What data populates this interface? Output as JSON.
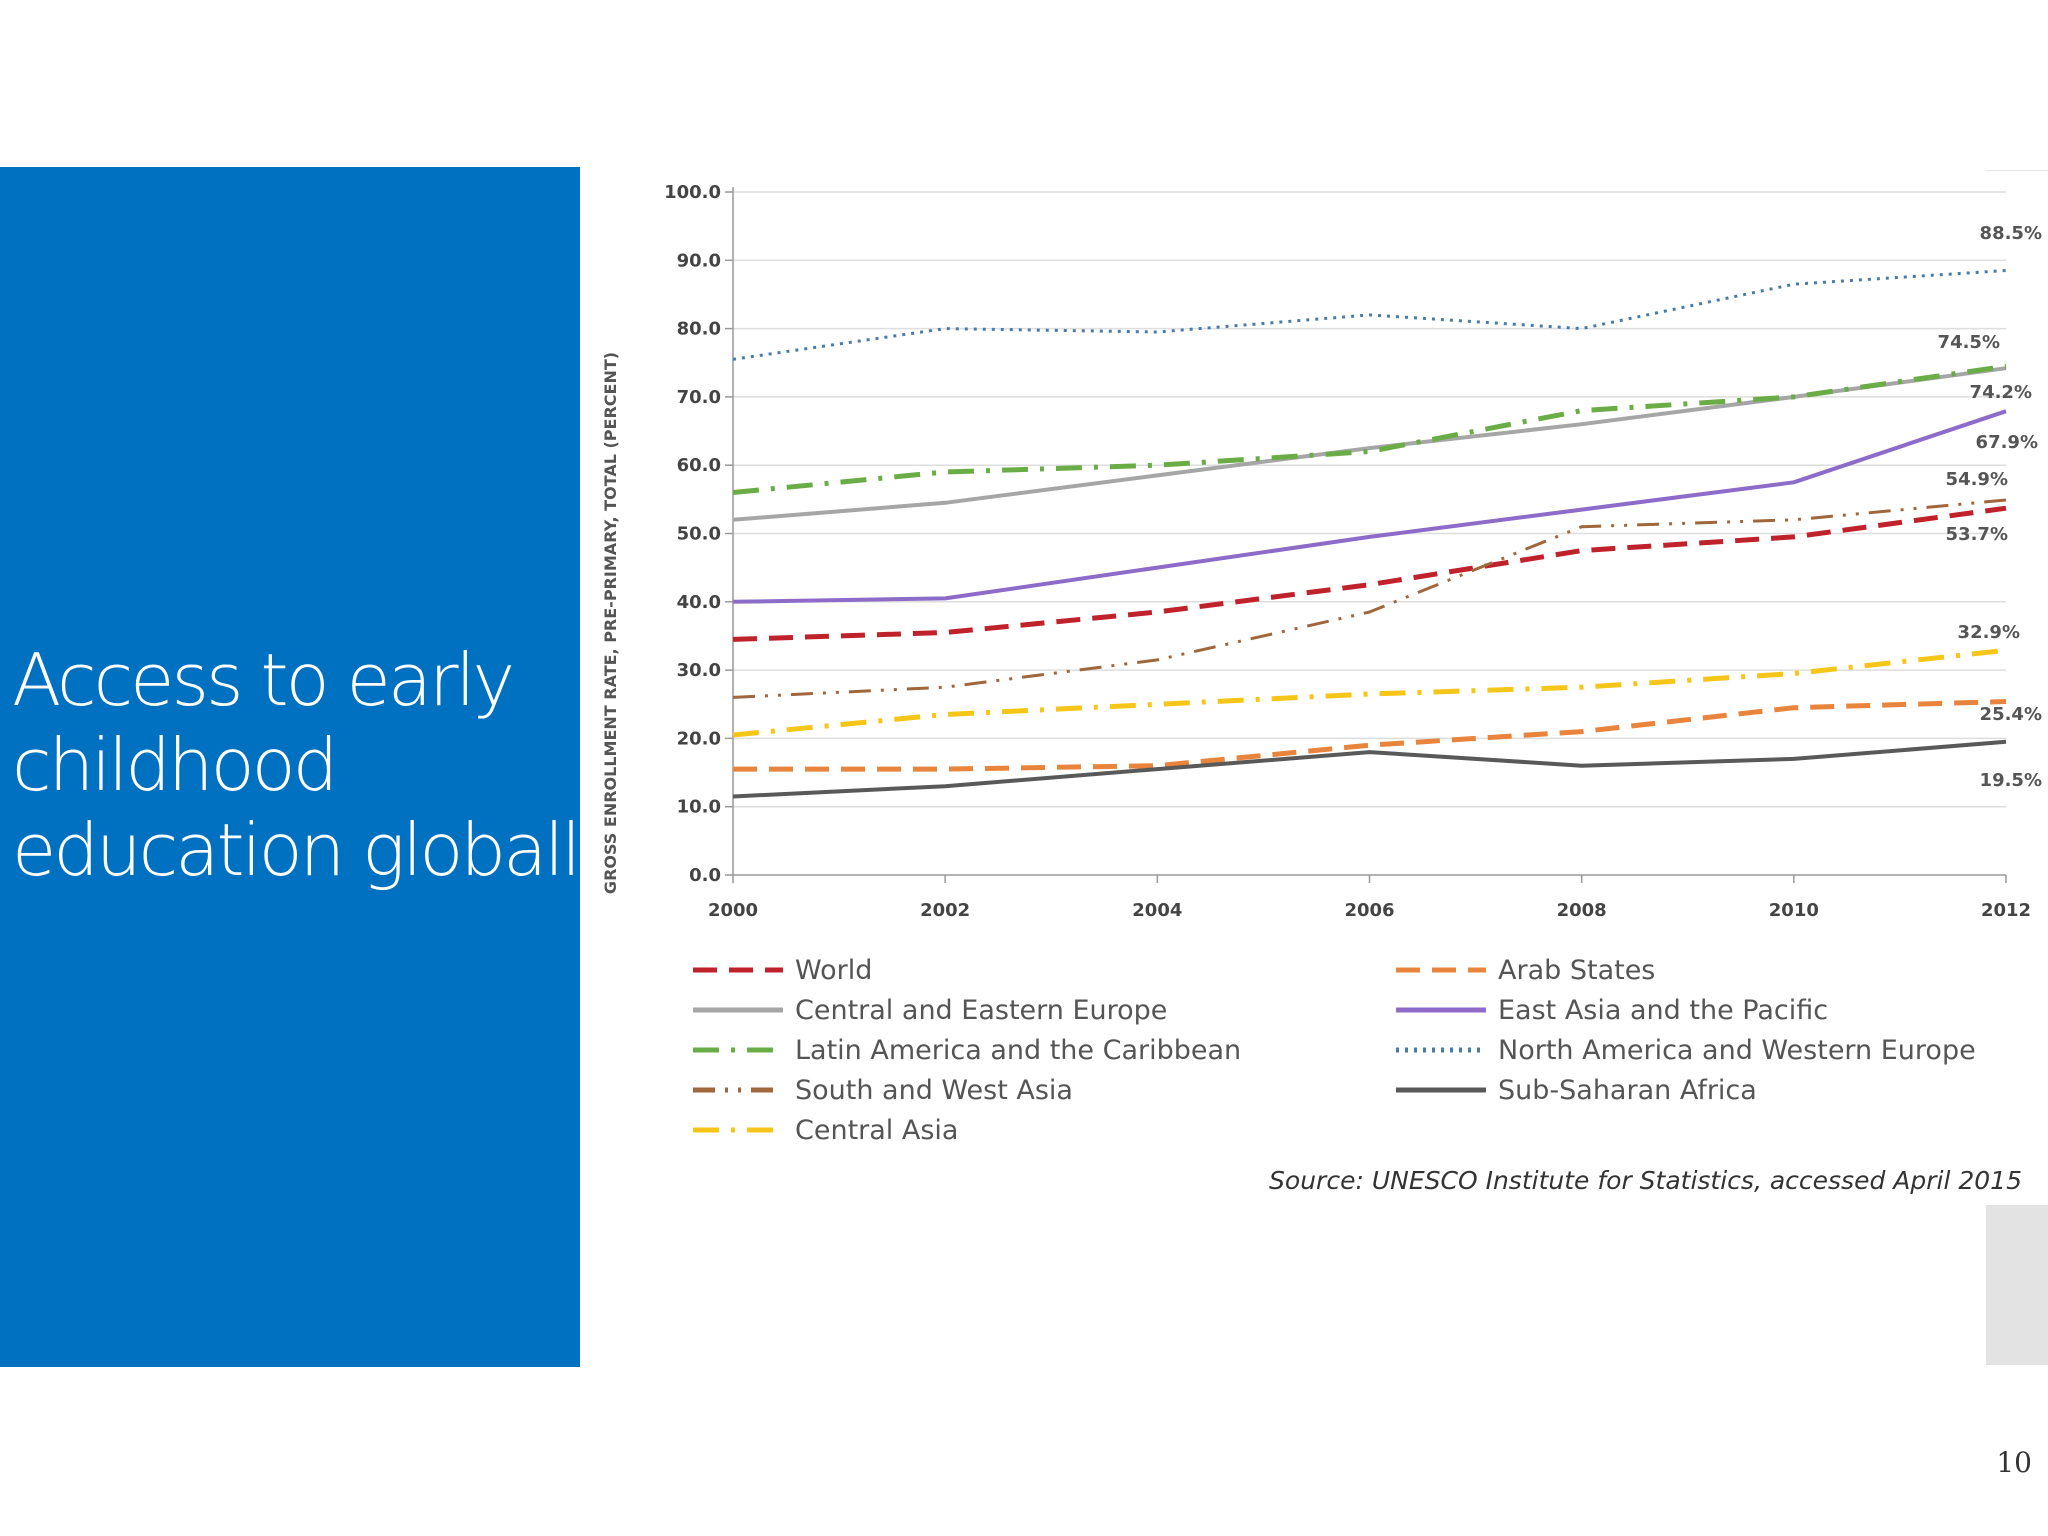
{
  "slide": {
    "title_lines": [
      "Access to early",
      "childhood",
      "education globally"
    ],
    "page_number": "10",
    "panel_color": "#0070c0"
  },
  "chart_data": {
    "type": "line",
    "ylabel": "GROSS ENROLLMENT RATE, PRE-PRIMARY, TOTAL (PERCENT)",
    "xlabel": "",
    "ylim": [
      0,
      100
    ],
    "yticks": [
      "0.0",
      "10.0",
      "20.0",
      "30.0",
      "40.0",
      "50.0",
      "60.0",
      "70.0",
      "80.0",
      "90.0",
      "100.0"
    ],
    "x": [
      2000,
      2002,
      2004,
      2006,
      2008,
      2010,
      2012
    ],
    "xticks": [
      "2000",
      "2002",
      "2004",
      "2006",
      "2008",
      "2010",
      "2012"
    ],
    "grid": true,
    "series": [
      {
        "name": "World",
        "color": "#c0222b",
        "dash": "long-dash",
        "values": [
          34.5,
          35.5,
          38.5,
          42.5,
          47.5,
          49.5,
          53.7
        ],
        "end_label": "53.7%"
      },
      {
        "name": "Central and Eastern Europe",
        "color": "#a6a6a6",
        "dash": "solid",
        "values": [
          52.0,
          54.5,
          58.5,
          62.5,
          66.0,
          70.0,
          74.2
        ],
        "end_label": "74.2%"
      },
      {
        "name": "Latin America and the Caribbean",
        "color": "#6aac46",
        "dash": "dash-dot",
        "values": [
          56.0,
          59.0,
          60.0,
          62.0,
          68.0,
          70.0,
          74.5
        ],
        "end_label": "74.5%"
      },
      {
        "name": "South and West Asia",
        "color": "#a0663c",
        "dash": "dash-dot-dot",
        "values": [
          26.0,
          27.5,
          31.5,
          38.5,
          51.0,
          52.0,
          54.9
        ],
        "end_label": "54.9%"
      },
      {
        "name": "Central Asia",
        "color": "#f5c518",
        "dash": "dash-dot",
        "values": [
          20.5,
          23.5,
          25.0,
          26.5,
          27.5,
          29.5,
          32.9
        ],
        "end_label": "32.9%"
      },
      {
        "name": "Arab States",
        "color": "#e8843c",
        "dash": "long-dash",
        "values": [
          15.5,
          15.5,
          16.0,
          19.0,
          21.0,
          24.5,
          25.4
        ],
        "end_label": "25.4%"
      },
      {
        "name": "East Asia and the Pacific",
        "color": "#8c6cc8",
        "dash": "solid",
        "values": [
          40.0,
          40.5,
          45.0,
          49.5,
          53.5,
          57.5,
          67.9
        ],
        "end_label": "67.9%"
      },
      {
        "name": "North America and Western Europe",
        "color": "#4a7ba6",
        "dash": "dotted",
        "values": [
          75.5,
          80.0,
          79.5,
          82.0,
          80.0,
          86.5,
          88.5
        ],
        "end_label": "88.5%"
      },
      {
        "name": "Sub-Saharan Africa",
        "color": "#595959",
        "dash": "solid",
        "values": [
          11.5,
          13.0,
          15.5,
          18.0,
          16.0,
          17.0,
          19.5
        ],
        "end_label": "19.5%"
      }
    ],
    "legend_columns": [
      [
        "World",
        "Central and Eastern Europe",
        "Latin America and the Caribbean",
        "South and West Asia",
        "Central Asia"
      ],
      [
        "Arab States",
        "East Asia and the Pacific",
        "North America and Western Europe",
        "Sub-Saharan Africa"
      ]
    ],
    "source": "Source: UNESCO Institute for Statistics, accessed April 2015"
  }
}
